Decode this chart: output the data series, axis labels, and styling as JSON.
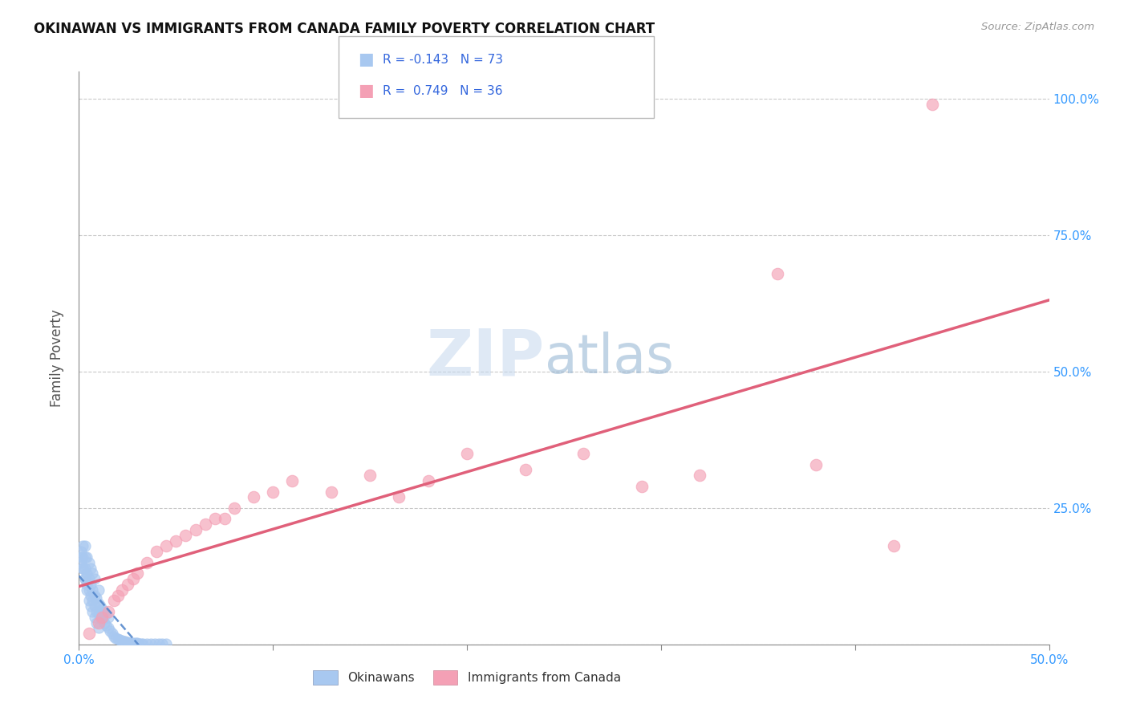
{
  "title": "OKINAWAN VS IMMIGRANTS FROM CANADA FAMILY POVERTY CORRELATION CHART",
  "source": "Source: ZipAtlas.com",
  "ylabel": "Family Poverty",
  "xlim": [
    0,
    0.5
  ],
  "ylim": [
    0,
    1.05
  ],
  "legend_label1": "Okinawans",
  "legend_label2": "Immigrants from Canada",
  "r1": -0.143,
  "n1": 73,
  "r2": 0.749,
  "n2": 36,
  "color1": "#A8C8F0",
  "color2": "#F4A0B5",
  "line_color1": "#5588CC",
  "line_color2": "#E0607A",
  "watermark_zip": "ZIP",
  "watermark_atlas": "atlas",
  "canada_x": [
    0.005,
    0.01,
    0.012,
    0.015,
    0.018,
    0.02,
    0.022,
    0.025,
    0.028,
    0.03,
    0.035,
    0.04,
    0.045,
    0.05,
    0.055,
    0.06,
    0.065,
    0.07,
    0.075,
    0.08,
    0.09,
    0.1,
    0.11,
    0.13,
    0.15,
    0.165,
    0.18,
    0.2,
    0.23,
    0.26,
    0.29,
    0.32,
    0.36,
    0.38,
    0.42,
    0.44
  ],
  "canada_y": [
    0.02,
    0.04,
    0.05,
    0.06,
    0.08,
    0.09,
    0.1,
    0.11,
    0.12,
    0.13,
    0.15,
    0.17,
    0.18,
    0.19,
    0.2,
    0.21,
    0.22,
    0.23,
    0.23,
    0.25,
    0.27,
    0.28,
    0.3,
    0.28,
    0.31,
    0.27,
    0.3,
    0.35,
    0.32,
    0.35,
    0.29,
    0.31,
    0.68,
    0.33,
    0.18,
    0.99
  ],
  "okinawan_x": [
    0.001,
    0.001,
    0.002,
    0.002,
    0.002,
    0.003,
    0.003,
    0.003,
    0.003,
    0.004,
    0.004,
    0.004,
    0.005,
    0.005,
    0.005,
    0.006,
    0.006,
    0.006,
    0.007,
    0.007,
    0.007,
    0.008,
    0.008,
    0.008,
    0.009,
    0.009,
    0.01,
    0.01,
    0.01,
    0.011,
    0.011,
    0.012,
    0.012,
    0.013,
    0.013,
    0.014,
    0.014,
    0.015,
    0.015,
    0.016,
    0.017,
    0.018,
    0.019,
    0.02,
    0.021,
    0.022,
    0.023,
    0.024,
    0.025,
    0.026,
    0.027,
    0.028,
    0.029,
    0.03,
    0.031,
    0.032,
    0.033,
    0.035,
    0.037,
    0.039,
    0.041,
    0.043,
    0.045,
    0.001,
    0.002,
    0.003,
    0.004,
    0.005,
    0.006,
    0.007,
    0.008,
    0.009,
    0.01
  ],
  "okinawan_y": [
    0.15,
    0.17,
    0.14,
    0.16,
    0.18,
    0.12,
    0.14,
    0.16,
    0.18,
    0.11,
    0.13,
    0.16,
    0.1,
    0.12,
    0.15,
    0.09,
    0.11,
    0.14,
    0.08,
    0.1,
    0.13,
    0.07,
    0.09,
    0.12,
    0.06,
    0.085,
    0.055,
    0.075,
    0.1,
    0.05,
    0.07,
    0.045,
    0.065,
    0.04,
    0.06,
    0.035,
    0.055,
    0.03,
    0.05,
    0.025,
    0.02,
    0.015,
    0.012,
    0.01,
    0.008,
    0.007,
    0.006,
    0.005,
    0.004,
    0.003,
    0.003,
    0.002,
    0.002,
    0.002,
    0.001,
    0.001,
    0.001,
    0.001,
    0.001,
    0.001,
    0.001,
    0.001,
    0.001,
    0.16,
    0.14,
    0.12,
    0.1,
    0.08,
    0.07,
    0.06,
    0.05,
    0.04,
    0.03
  ]
}
